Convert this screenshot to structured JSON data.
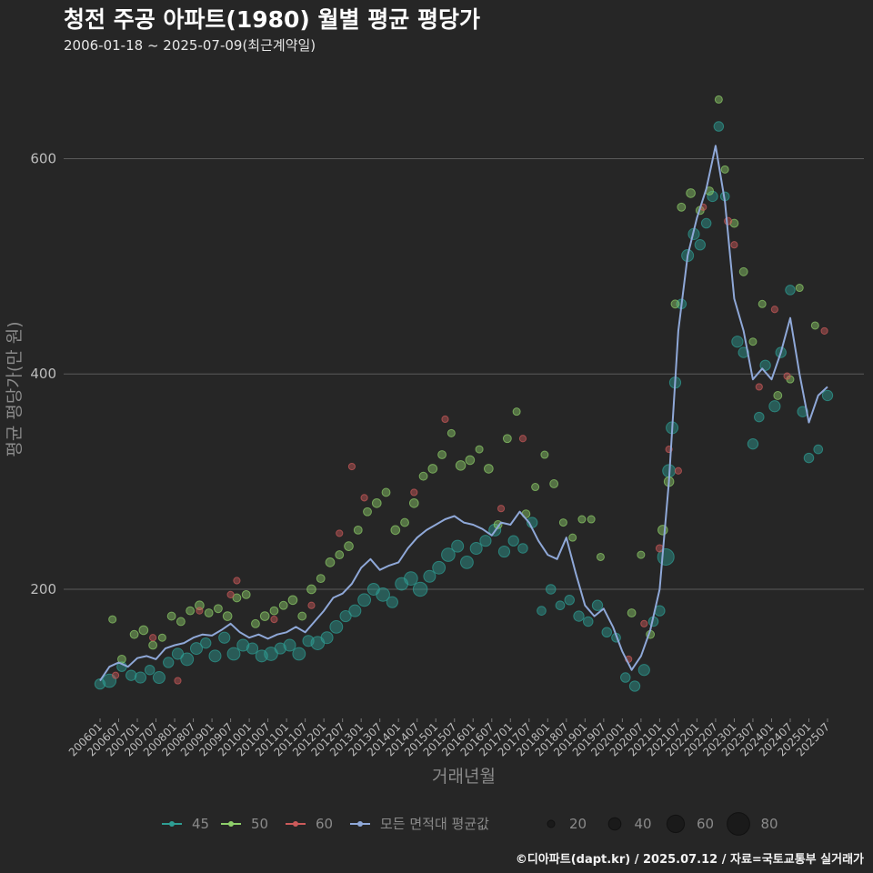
{
  "header": {
    "title": "청전 주공 아파트(1980) 월별 평균 평당가",
    "subtitle": "2006-01-18 ~ 2025-07-09(최근계약일)"
  },
  "footer": {
    "caption": "©디아파트(dapt.kr) / 2025.07.12 / 자료=국토교통부 실거래가"
  },
  "colors": {
    "background": "#262626",
    "grid": "#5a5a5a",
    "s45": "#2e9e94",
    "s50": "#8ecf6a",
    "s60": "#cc5a5a",
    "avg": "#8fa8d8"
  },
  "chart_data": {
    "type": "scatter",
    "title": "청전 주공 아파트(1980) 월별 평균 평당가",
    "xlabel": "거래년월",
    "ylabel": "평균 평당가(만 원)",
    "ylim": [
      80,
      690
    ],
    "yticks": [
      200,
      400,
      600
    ],
    "x_range": [
      "2006-01",
      "2025-07"
    ],
    "x_ticks": [
      "200601",
      "200607",
      "200701",
      "200707",
      "200801",
      "200807",
      "200901",
      "200907",
      "201001",
      "201007",
      "201101",
      "201107",
      "201201",
      "201207",
      "201301",
      "201307",
      "201401",
      "201407",
      "201501",
      "201507",
      "201601",
      "201607",
      "201701",
      "201707",
      "201801",
      "201807",
      "201901",
      "201907",
      "202001",
      "202007",
      "202101",
      "202107",
      "202201",
      "202207",
      "202301",
      "202307",
      "202401",
      "202407",
      "202501",
      "202507"
    ],
    "legend": {
      "series": [
        {
          "key": "s45",
          "label": "45"
        },
        {
          "key": "s50",
          "label": "50"
        },
        {
          "key": "s60",
          "label": "60"
        },
        {
          "key": "avg",
          "label": "모든 면적대 평균값"
        }
      ],
      "size_title": "",
      "sizes": [
        20,
        40,
        60,
        80
      ]
    },
    "average_line": [
      [
        "2006-01",
        115
      ],
      [
        "2006-04",
        128
      ],
      [
        "2006-07",
        132
      ],
      [
        "2006-10",
        128
      ],
      [
        "2007-01",
        136
      ],
      [
        "2007-04",
        138
      ],
      [
        "2007-07",
        135
      ],
      [
        "2007-10",
        145
      ],
      [
        "2008-01",
        148
      ],
      [
        "2008-04",
        150
      ],
      [
        "2008-07",
        155
      ],
      [
        "2008-10",
        158
      ],
      [
        "2009-01",
        157
      ],
      [
        "2009-04",
        162
      ],
      [
        "2009-07",
        168
      ],
      [
        "2009-10",
        160
      ],
      [
        "2010-01",
        155
      ],
      [
        "2010-04",
        158
      ],
      [
        "2010-07",
        154
      ],
      [
        "2010-10",
        158
      ],
      [
        "2011-01",
        160
      ],
      [
        "2011-04",
        165
      ],
      [
        "2011-07",
        160
      ],
      [
        "2011-10",
        170
      ],
      [
        "2012-01",
        180
      ],
      [
        "2012-04",
        192
      ],
      [
        "2012-07",
        196
      ],
      [
        "2012-10",
        205
      ],
      [
        "2013-01",
        220
      ],
      [
        "2013-04",
        228
      ],
      [
        "2013-07",
        218
      ],
      [
        "2013-10",
        222
      ],
      [
        "2014-01",
        225
      ],
      [
        "2014-04",
        238
      ],
      [
        "2014-07",
        248
      ],
      [
        "2014-10",
        255
      ],
      [
        "2015-01",
        260
      ],
      [
        "2015-04",
        265
      ],
      [
        "2015-07",
        268
      ],
      [
        "2015-10",
        262
      ],
      [
        "2016-01",
        260
      ],
      [
        "2016-04",
        256
      ],
      [
        "2016-07",
        250
      ],
      [
        "2016-10",
        262
      ],
      [
        "2017-01",
        260
      ],
      [
        "2017-04",
        272
      ],
      [
        "2017-07",
        262
      ],
      [
        "2017-10",
        245
      ],
      [
        "2018-01",
        232
      ],
      [
        "2018-04",
        228
      ],
      [
        "2018-07",
        248
      ],
      [
        "2018-10",
        215
      ],
      [
        "2019-01",
        185
      ],
      [
        "2019-04",
        175
      ],
      [
        "2019-07",
        182
      ],
      [
        "2019-10",
        165
      ],
      [
        "2020-01",
        142
      ],
      [
        "2020-04",
        125
      ],
      [
        "2020-07",
        138
      ],
      [
        "2020-10",
        162
      ],
      [
        "2021-01",
        200
      ],
      [
        "2021-04",
        300
      ],
      [
        "2021-07",
        440
      ],
      [
        "2021-10",
        510
      ],
      [
        "2022-01",
        545
      ],
      [
        "2022-04",
        572
      ],
      [
        "2022-07",
        612
      ],
      [
        "2022-10",
        560
      ],
      [
        "2023-01",
        470
      ],
      [
        "2023-04",
        440
      ],
      [
        "2023-07",
        395
      ],
      [
        "2023-10",
        405
      ],
      [
        "2024-01",
        395
      ],
      [
        "2024-04",
        420
      ],
      [
        "2024-07",
        452
      ],
      [
        "2024-10",
        400
      ],
      [
        "2025-01",
        355
      ],
      [
        "2025-04",
        380
      ],
      [
        "2025-07",
        388
      ]
    ],
    "points": {
      "s45": [
        [
          "2006-01",
          112,
          10
        ],
        [
          "2006-04",
          115,
          14
        ],
        [
          "2006-08",
          128,
          9
        ],
        [
          "2006-11",
          120,
          10
        ],
        [
          "2007-02",
          118,
          11
        ],
        [
          "2007-05",
          125,
          9
        ],
        [
          "2007-08",
          118,
          12
        ],
        [
          "2007-11",
          132,
          10
        ],
        [
          "2008-02",
          140,
          11
        ],
        [
          "2008-05",
          135,
          13
        ],
        [
          "2008-08",
          145,
          12
        ],
        [
          "2008-11",
          150,
          10
        ],
        [
          "2009-02",
          138,
          12
        ],
        [
          "2009-05",
          155,
          11
        ],
        [
          "2009-08",
          140,
          13
        ],
        [
          "2009-11",
          148,
          12
        ],
        [
          "2010-02",
          145,
          11
        ],
        [
          "2010-05",
          138,
          12
        ],
        [
          "2010-08",
          140,
          14
        ],
        [
          "2010-11",
          145,
          11
        ],
        [
          "2011-02",
          148,
          12
        ],
        [
          "2011-05",
          140,
          13
        ],
        [
          "2011-08",
          152,
          11
        ],
        [
          "2011-11",
          150,
          14
        ],
        [
          "2012-02",
          155,
          12
        ],
        [
          "2012-05",
          165,
          13
        ],
        [
          "2012-08",
          175,
          11
        ],
        [
          "2012-11",
          180,
          12
        ],
        [
          "2013-02",
          190,
          13
        ],
        [
          "2013-05",
          200,
          12
        ],
        [
          "2013-08",
          195,
          14
        ],
        [
          "2013-11",
          188,
          11
        ],
        [
          "2014-02",
          205,
          13
        ],
        [
          "2014-05",
          210,
          14
        ],
        [
          "2014-08",
          200,
          15
        ],
        [
          "2014-11",
          212,
          12
        ],
        [
          "2015-02",
          220,
          13
        ],
        [
          "2015-05",
          232,
          14
        ],
        [
          "2015-08",
          240,
          12
        ],
        [
          "2015-11",
          225,
          13
        ],
        [
          "2016-02",
          238,
          12
        ],
        [
          "2016-05",
          245,
          11
        ],
        [
          "2016-08",
          255,
          12
        ],
        [
          "2016-11",
          235,
          11
        ],
        [
          "2017-02",
          245,
          10
        ],
        [
          "2017-05",
          238,
          9
        ],
        [
          "2017-08",
          262,
          10
        ],
        [
          "2017-11",
          180,
          8
        ],
        [
          "2018-02",
          200,
          9
        ],
        [
          "2018-05",
          185,
          8
        ],
        [
          "2018-08",
          190,
          9
        ],
        [
          "2018-11",
          175,
          10
        ],
        [
          "2019-02",
          170,
          9
        ],
        [
          "2019-05",
          185,
          10
        ],
        [
          "2019-08",
          160,
          9
        ],
        [
          "2019-11",
          155,
          8
        ],
        [
          "2020-02",
          118,
          9
        ],
        [
          "2020-05",
          110,
          10
        ],
        [
          "2020-08",
          125,
          11
        ],
        [
          "2020-11",
          170,
          9
        ],
        [
          "2021-01",
          180,
          10
        ],
        [
          "2021-03",
          230,
          18
        ],
        [
          "2021-04",
          310,
          13
        ],
        [
          "2021-05",
          350,
          12
        ],
        [
          "2021-06",
          392,
          11
        ],
        [
          "2021-08",
          465,
          9
        ],
        [
          "2021-10",
          510,
          12
        ],
        [
          "2021-12",
          530,
          11
        ],
        [
          "2022-02",
          520,
          10
        ],
        [
          "2022-04",
          540,
          9
        ],
        [
          "2022-06",
          565,
          10
        ],
        [
          "2022-08",
          630,
          9
        ],
        [
          "2022-10",
          565,
          8
        ],
        [
          "2023-02",
          430,
          11
        ],
        [
          "2023-04",
          420,
          10
        ],
        [
          "2023-07",
          335,
          10
        ],
        [
          "2023-09",
          360,
          9
        ],
        [
          "2023-11",
          408,
          10
        ],
        [
          "2024-02",
          370,
          11
        ],
        [
          "2024-04",
          420,
          10
        ],
        [
          "2024-07",
          478,
          9
        ],
        [
          "2024-11",
          365,
          10
        ],
        [
          "2025-01",
          322,
          9
        ],
        [
          "2025-04",
          330,
          8
        ],
        [
          "2025-07",
          380,
          10
        ]
      ],
      "s50": [
        [
          "2006-05",
          172,
          6
        ],
        [
          "2006-08",
          135,
          7
        ],
        [
          "2006-12",
          158,
          7
        ],
        [
          "2007-03",
          162,
          8
        ],
        [
          "2007-06",
          148,
          7
        ],
        [
          "2007-09",
          155,
          6
        ],
        [
          "2007-12",
          175,
          7
        ],
        [
          "2008-03",
          170,
          7
        ],
        [
          "2008-06",
          180,
          7
        ],
        [
          "2008-09",
          185,
          8
        ],
        [
          "2008-12",
          178,
          7
        ],
        [
          "2009-03",
          182,
          7
        ],
        [
          "2009-06",
          175,
          8
        ],
        [
          "2009-09",
          192,
          7
        ],
        [
          "2009-12",
          195,
          7
        ],
        [
          "2010-03",
          168,
          7
        ],
        [
          "2010-06",
          175,
          8
        ],
        [
          "2010-09",
          180,
          7
        ],
        [
          "2010-12",
          185,
          7
        ],
        [
          "2011-03",
          190,
          8
        ],
        [
          "2011-06",
          175,
          7
        ],
        [
          "2011-09",
          200,
          8
        ],
        [
          "2011-12",
          210,
          7
        ],
        [
          "2012-03",
          225,
          8
        ],
        [
          "2012-06",
          232,
          7
        ],
        [
          "2012-09",
          240,
          8
        ],
        [
          "2012-12",
          255,
          7
        ],
        [
          "2013-03",
          272,
          7
        ],
        [
          "2013-06",
          280,
          8
        ],
        [
          "2013-09",
          290,
          7
        ],
        [
          "2013-12",
          255,
          8
        ],
        [
          "2014-03",
          262,
          7
        ],
        [
          "2014-06",
          280,
          8
        ],
        [
          "2014-09",
          305,
          7
        ],
        [
          "2014-12",
          312,
          8
        ],
        [
          "2015-03",
          325,
          7
        ],
        [
          "2015-06",
          345,
          6
        ],
        [
          "2015-09",
          315,
          9
        ],
        [
          "2015-12",
          320,
          8
        ],
        [
          "2016-03",
          330,
          6
        ],
        [
          "2016-06",
          312,
          8
        ],
        [
          "2016-09",
          260,
          7
        ],
        [
          "2016-12",
          340,
          7
        ],
        [
          "2017-03",
          365,
          6
        ],
        [
          "2017-06",
          270,
          7
        ],
        [
          "2017-09",
          295,
          6
        ],
        [
          "2017-12",
          325,
          6
        ],
        [
          "2018-03",
          298,
          7
        ],
        [
          "2018-06",
          262,
          6
        ],
        [
          "2018-09",
          248,
          6
        ],
        [
          "2018-12",
          265,
          6
        ],
        [
          "2019-03",
          265,
          6
        ],
        [
          "2019-06",
          230,
          6
        ],
        [
          "2020-04",
          178,
          7
        ],
        [
          "2020-07",
          232,
          6
        ],
        [
          "2020-10",
          158,
          7
        ],
        [
          "2021-02",
          255,
          9
        ],
        [
          "2021-04",
          300,
          9
        ],
        [
          "2021-06",
          465,
          7
        ],
        [
          "2021-08",
          555,
          7
        ],
        [
          "2021-11",
          568,
          8
        ],
        [
          "2022-02",
          552,
          7
        ],
        [
          "2022-05",
          570,
          7
        ],
        [
          "2022-08",
          655,
          6
        ],
        [
          "2022-10",
          590,
          6
        ],
        [
          "2023-01",
          540,
          7
        ],
        [
          "2023-04",
          495,
          7
        ],
        [
          "2023-07",
          430,
          6
        ],
        [
          "2023-10",
          465,
          6
        ],
        [
          "2024-03",
          380,
          7
        ],
        [
          "2024-07",
          395,
          6
        ],
        [
          "2024-10",
          480,
          6
        ],
        [
          "2025-03",
          445,
          6
        ]
      ],
      "s60": [
        [
          "2006-06",
          120,
          5
        ],
        [
          "2007-06",
          155,
          5
        ],
        [
          "2008-02",
          115,
          5
        ],
        [
          "2008-09",
          180,
          5
        ],
        [
          "2009-07",
          195,
          5
        ],
        [
          "2009-09",
          208,
          5
        ],
        [
          "2010-09",
          172,
          5
        ],
        [
          "2011-09",
          185,
          5
        ],
        [
          "2012-06",
          252,
          5
        ],
        [
          "2012-10",
          314,
          5
        ],
        [
          "2013-02",
          285,
          5
        ],
        [
          "2014-06",
          290,
          5
        ],
        [
          "2015-04",
          358,
          5
        ],
        [
          "2016-10",
          275,
          5
        ],
        [
          "2017-05",
          340,
          5
        ],
        [
          "2020-03",
          135,
          5
        ],
        [
          "2020-08",
          168,
          5
        ],
        [
          "2021-01",
          238,
          6
        ],
        [
          "2021-04",
          330,
          5
        ],
        [
          "2021-07",
          310,
          5
        ],
        [
          "2022-03",
          555,
          5
        ],
        [
          "2022-11",
          542,
          6
        ],
        [
          "2023-01",
          520,
          5
        ],
        [
          "2023-09",
          388,
          5
        ],
        [
          "2024-02",
          460,
          5
        ],
        [
          "2024-06",
          398,
          5
        ],
        [
          "2025-06",
          440,
          5
        ]
      ]
    }
  }
}
